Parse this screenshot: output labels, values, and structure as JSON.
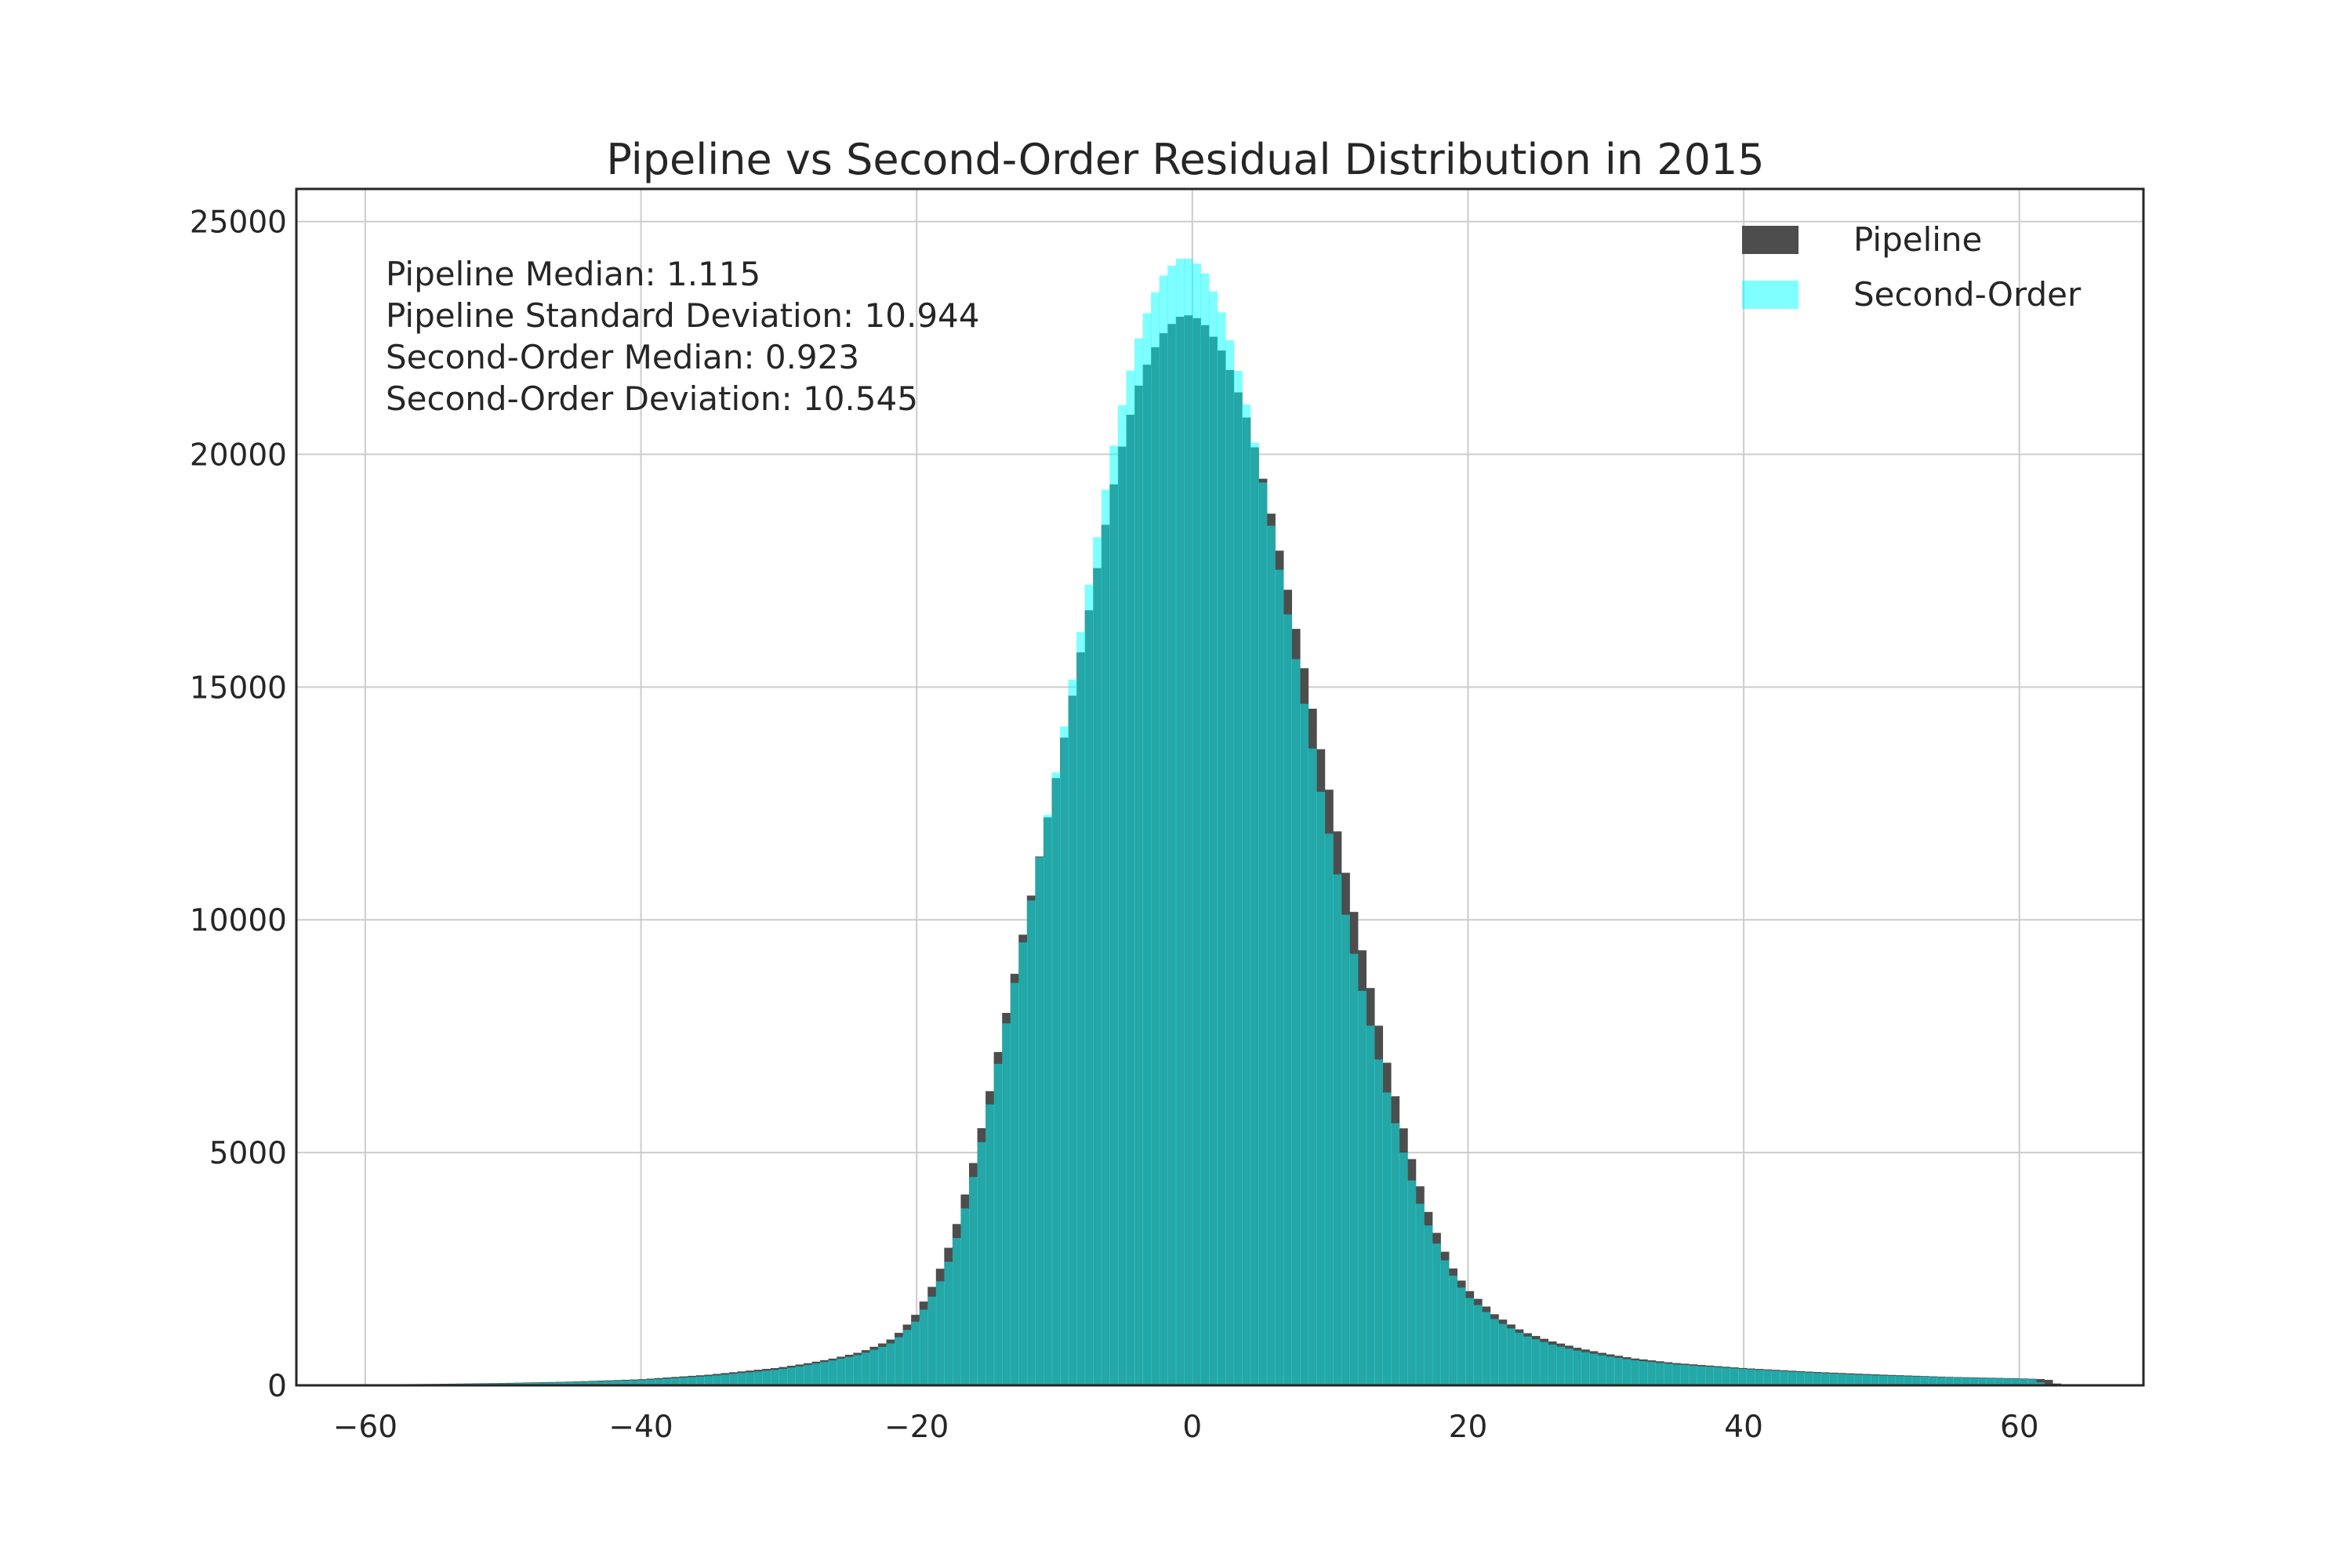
{
  "chart_data": {
    "type": "histogram",
    "title": "Pipeline vs Second-Order Residual Distribution in 2015",
    "xlabel": "",
    "ylabel": "",
    "xlim": [
      -65,
      69
    ],
    "ylim": [
      0,
      25700
    ],
    "xticks": [
      -60,
      -40,
      -20,
      0,
      20,
      40,
      60
    ],
    "xtick_labels": [
      "−60",
      "−40",
      "−20",
      "0",
      "20",
      "40",
      "60"
    ],
    "yticks": [
      0,
      5000,
      10000,
      15000,
      20000,
      25000
    ],
    "ytick_labels": [
      "0",
      "5000",
      "10000",
      "15000",
      "20000",
      "25000"
    ],
    "grid": true,
    "legend_position": "top-right",
    "annotations": [
      "Pipeline Median: 1.115",
      "Pipeline Standard Deviation: 10.944",
      "Second-Order Median: 0.923",
      "Second-Order Deviation: 10.545"
    ],
    "bin_width": 0.6,
    "bin_range": [
      -60,
      63
    ],
    "series": [
      {
        "name": "Pipeline",
        "color": "#4d4d4d",
        "opacity": 1.0,
        "x": [
          -60,
          -55,
          -50,
          -45,
          -40,
          -35,
          -30,
          -28,
          -26,
          -24,
          -22,
          -21,
          -20,
          -19,
          -18,
          -17,
          -16,
          -15,
          -14,
          -13,
          -12,
          -11,
          -10,
          -9,
          -8,
          -7,
          -6,
          -5,
          -4,
          -3,
          -2,
          -1,
          0,
          1,
          2,
          3,
          4,
          5,
          6,
          7,
          8,
          9,
          10,
          11,
          12,
          13,
          14,
          15,
          16,
          17,
          18,
          19,
          20,
          22,
          24,
          26,
          28,
          30,
          32,
          35,
          40,
          45,
          50,
          55,
          60,
          62,
          63
        ],
        "counts": [
          20,
          30,
          50,
          80,
          130,
          230,
          380,
          470,
          580,
          720,
          960,
          1200,
          1550,
          2050,
          2700,
          3550,
          4650,
          5900,
          7300,
          8700,
          10100,
          11500,
          12900,
          14350,
          15900,
          17400,
          18950,
          20300,
          21400,
          22150,
          22650,
          22950,
          23000,
          22750,
          22300,
          21600,
          20700,
          19600,
          18350,
          16950,
          15550,
          14100,
          12650,
          11150,
          9750,
          8400,
          7050,
          5850,
          4750,
          3800,
          3050,
          2450,
          2050,
          1500,
          1150,
          950,
          800,
          680,
          580,
          480,
          370,
          290,
          230,
          180,
          150,
          130,
          0
        ]
      },
      {
        "name": "Second-Order",
        "color": "#00ffff",
        "opacity": 0.5,
        "x": [
          -60,
          -55,
          -50,
          -45,
          -40,
          -35,
          -30,
          -28,
          -26,
          -24,
          -22,
          -21,
          -20,
          -19,
          -18,
          -17,
          -16,
          -15,
          -14,
          -13,
          -12,
          -11,
          -10,
          -9,
          -8,
          -7,
          -6,
          -5,
          -4,
          -3,
          -2,
          -1,
          0,
          1,
          2,
          3,
          4,
          5,
          6,
          7,
          8,
          9,
          10,
          11,
          12,
          13,
          14,
          15,
          16,
          17,
          18,
          19,
          20,
          22,
          24,
          26,
          28,
          30,
          32,
          35,
          40,
          45,
          50,
          55,
          60,
          61,
          62
        ],
        "counts": [
          15,
          25,
          40,
          70,
          110,
          200,
          340,
          430,
          540,
          670,
          880,
          1100,
          1400,
          1850,
          2400,
          3250,
          4350,
          5600,
          7050,
          8500,
          9950,
          11500,
          13000,
          14650,
          16350,
          18050,
          19750,
          21200,
          22400,
          23300,
          23900,
          24200,
          24200,
          23850,
          23150,
          22150,
          20950,
          19550,
          18000,
          16400,
          14800,
          13200,
          11700,
          10250,
          8850,
          7600,
          6400,
          5300,
          4300,
          3500,
          2850,
          2300,
          1900,
          1400,
          1080,
          880,
          740,
          630,
          540,
          450,
          350,
          270,
          210,
          170,
          140,
          130,
          0
        ]
      }
    ]
  }
}
